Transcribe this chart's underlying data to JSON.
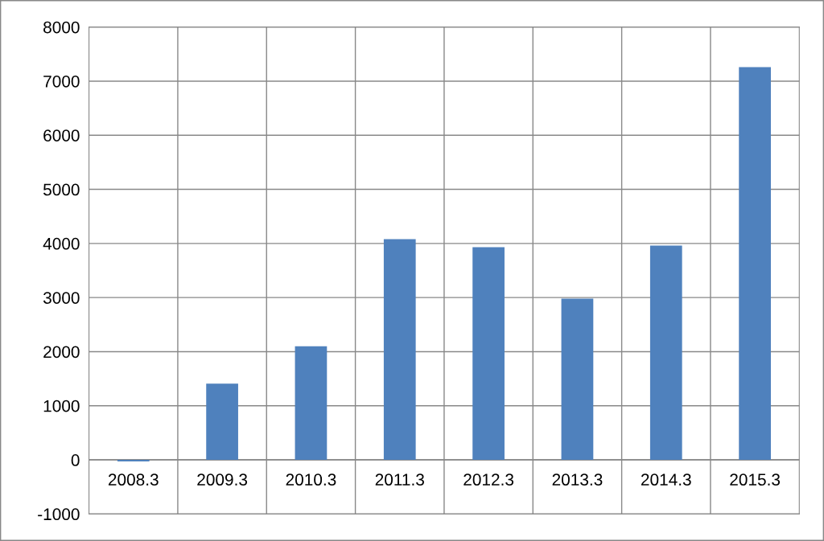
{
  "chart_data": {
    "type": "bar",
    "categories": [
      "2008.3",
      "2009.3",
      "2010.3",
      "2011.3",
      "2012.3",
      "2013.3",
      "2014.3",
      "2015.3"
    ],
    "values": [
      -30,
      1410,
      2100,
      4080,
      3930,
      2980,
      3960,
      7260
    ],
    "color": "#4f81bd",
    "ylim": [
      -1000,
      8000
    ],
    "yticks": [
      -1000,
      0,
      1000,
      2000,
      3000,
      4000,
      5000,
      6000,
      7000,
      8000
    ],
    "grid": true,
    "legend": false
  }
}
